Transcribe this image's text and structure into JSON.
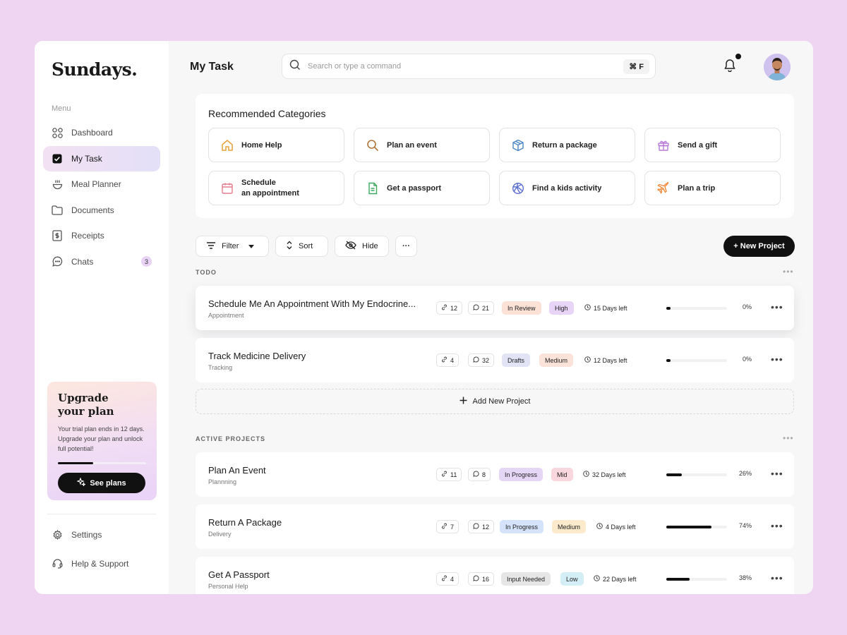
{
  "sidebar": {
    "logo": "Sundays.",
    "menu_caption": "Menu",
    "items": [
      {
        "label": "Dashboard",
        "icon": "grid-icon"
      },
      {
        "label": "My Task",
        "icon": "checkbox-icon",
        "active": true
      },
      {
        "label": "Meal Planner",
        "icon": "bowl-icon"
      },
      {
        "label": "Documents",
        "icon": "folder-icon"
      },
      {
        "label": "Receipts",
        "icon": "receipt-icon"
      },
      {
        "label": "Chats",
        "icon": "chat-icon",
        "badge": "3"
      }
    ],
    "upgrade": {
      "title_line1": "Upgrade",
      "title_line2": "your plan",
      "text": "Your trial plan ends in 12 days. Upgrade your plan and unlock full potential!",
      "progress": 0.4,
      "button_label": "See plans"
    },
    "bottom_items": [
      {
        "label": "Settings",
        "icon": "gear-icon"
      },
      {
        "label": "Help & Support",
        "icon": "headset-icon"
      }
    ]
  },
  "header": {
    "title": "My Task",
    "search_placeholder": "Search or type a command",
    "shortcut": "⌘ F"
  },
  "recommended": {
    "title": "Recommended Categories",
    "categories": [
      {
        "label": "Home Help",
        "icon": "home-icon",
        "color": "#E5A23A"
      },
      {
        "label": "Plan an event",
        "icon": "search-icon",
        "color": "#B0743E"
      },
      {
        "label": "Return a package",
        "icon": "package-icon",
        "color": "#4A86C5"
      },
      {
        "label": "Send a gift",
        "icon": "gift-icon",
        "color": "#B97AD6"
      },
      {
        "label_line1": "Schedule",
        "label_line2": "an appointment",
        "icon": "calendar-icon",
        "color": "#E07A8C"
      },
      {
        "label": "Get a passport",
        "icon": "document-icon",
        "color": "#3FA860"
      },
      {
        "label": "Find a kids activity",
        "icon": "ball-icon",
        "color": "#5B6FCF"
      },
      {
        "label": "Plan a trip",
        "icon": "plane-icon",
        "color": "#F08A3A"
      }
    ]
  },
  "toolbar": {
    "filter": "Filter",
    "sort": "Sort",
    "hide": "Hide",
    "more": "···",
    "new_project": "+ New Project"
  },
  "todo": {
    "label": "TODO",
    "rows": [
      {
        "title": "Schedule Me An Appointment With My Endocrine...",
        "sub": "Appointment",
        "links": "12",
        "comments": "21",
        "status": "In Review",
        "priority": "High",
        "days": "15 Days left",
        "progress": 0,
        "pct": "0%"
      },
      {
        "title": "Track Medicine Delivery",
        "sub": "Tracking",
        "links": "4",
        "comments": "32",
        "status": "Drafts",
        "priority": "Medium",
        "days": "12 Days left",
        "progress": 0,
        "pct": "0%"
      }
    ],
    "add_label": "Add New Project"
  },
  "active": {
    "label": "ACTIVE PROJECTS",
    "rows": [
      {
        "title": "Plan An Event",
        "sub": "Plannning",
        "links": "11",
        "comments": "8",
        "status": "In Progress",
        "priority": "Mid",
        "days": "32 Days left",
        "progress": 0.26,
        "pct": "26%"
      },
      {
        "title": "Return A Package",
        "sub": "Delivery",
        "links": "7",
        "comments": "12",
        "status": "In Progress",
        "priority": "Medium",
        "days": "4 Days left",
        "progress": 0.74,
        "pct": "74%"
      },
      {
        "title": "Get A Passport",
        "sub": "Personal Help",
        "links": "4",
        "comments": "16",
        "status": "Input Needed",
        "priority": "Low",
        "days": "22 Days left",
        "progress": 0.38,
        "pct": "38%"
      }
    ]
  },
  "colors": {
    "in_review": "#FBE1D6",
    "high": "#E7D4F6",
    "drafts": "#E3E3F6",
    "medium_peach": "#FCE3DA",
    "in_progress_purple": "#E6D6F6",
    "mid": "#FAD6DE",
    "in_progress_blue": "#D5E3FA",
    "medium_yellow": "#FBEACB",
    "input_needed": "#E6E6E6",
    "low": "#D4EEF6"
  }
}
